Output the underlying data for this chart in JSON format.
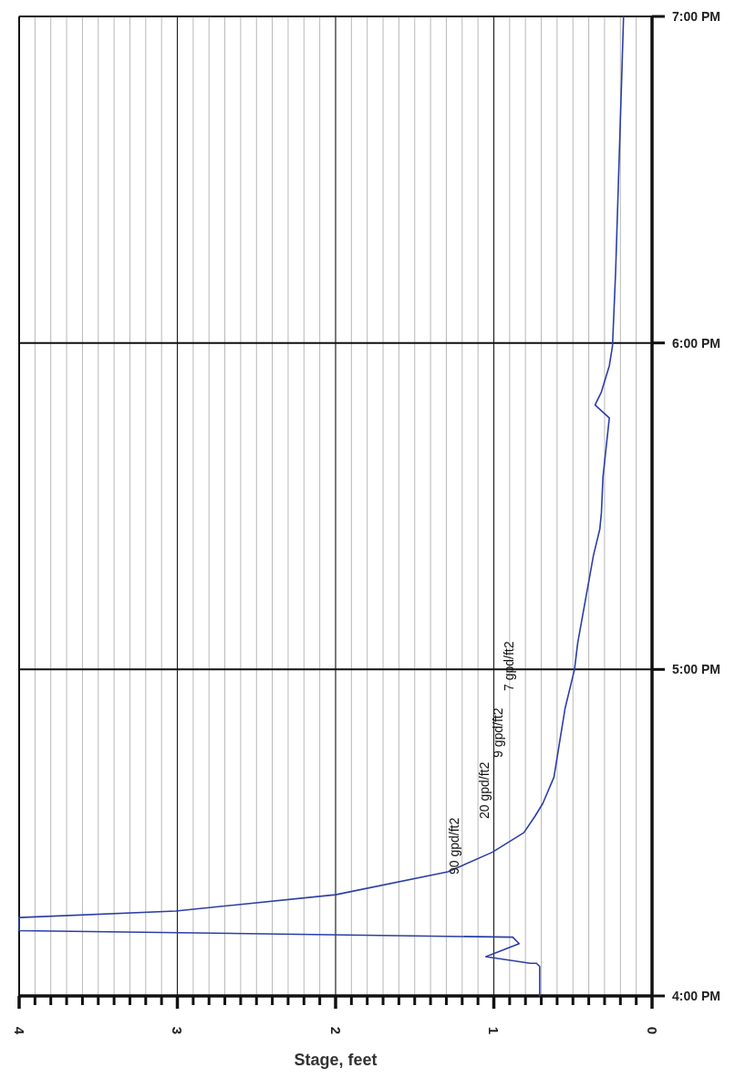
{
  "chart_data": {
    "type": "line",
    "xlabel": "Stage, feet",
    "xlim": [
      4,
      0
    ],
    "xticks": [
      0,
      {
        "value": 0.1,
        "label": null
      },
      {
        "value": 0.2,
        "label": null
      },
      {
        "value": 0.3,
        "label": null
      },
      {
        "value": 0.4,
        "label": null
      },
      {
        "value": 0.5,
        "label": null
      },
      {
        "value": 0.6,
        "label": null
      },
      {
        "value": 0.7,
        "label": null
      },
      {
        "value": 0.8,
        "label": null
      },
      {
        "value": 0.9,
        "label": null
      },
      1,
      {
        "value": 1.1,
        "label": null
      },
      {
        "value": 1.2,
        "label": null
      },
      {
        "value": 1.3,
        "label": null
      },
      {
        "value": 1.4,
        "label": null
      },
      {
        "value": 1.5,
        "label": null
      },
      {
        "value": 1.6,
        "label": null
      },
      {
        "value": 1.7,
        "label": null
      },
      {
        "value": 1.8,
        "label": null
      },
      {
        "value": 1.9,
        "label": null
      },
      2,
      {
        "value": 2.1,
        "label": null
      },
      {
        "value": 2.2,
        "label": null
      },
      {
        "value": 2.3,
        "label": null
      },
      {
        "value": 2.4,
        "label": null
      },
      {
        "value": 2.5,
        "label": null
      },
      {
        "value": 2.6,
        "label": null
      },
      {
        "value": 2.7,
        "label": null
      },
      {
        "value": 2.8,
        "label": null
      },
      {
        "value": 2.9,
        "label": null
      },
      3,
      {
        "value": 3.1,
        "label": null
      },
      {
        "value": 3.2,
        "label": null
      },
      {
        "value": 3.3,
        "label": null
      },
      {
        "value": 3.4,
        "label": null
      },
      {
        "value": 3.5,
        "label": null
      },
      {
        "value": 3.6,
        "label": null
      },
      {
        "value": 3.7,
        "label": null
      },
      {
        "value": 3.8,
        "label": null
      },
      {
        "value": 3.9,
        "label": null
      },
      4
    ],
    "ylim": [
      16,
      19
    ],
    "yticks": [
      {
        "value": 16,
        "label": "4:00 PM"
      },
      {
        "value": 17,
        "label": "5:00 PM"
      },
      {
        "value": 18,
        "label": "6:00 PM"
      },
      {
        "value": 19,
        "label": "7:00 PM"
      }
    ],
    "grid": true,
    "series": [
      {
        "color": "#2b3fa6",
        "x": [
          0.71,
          0.71,
          0.73,
          0.77,
          1.05,
          0.84,
          0.88,
          4.0,
          4.0,
          3.01,
          2.0,
          1.29,
          1.01,
          0.81,
          0.74,
          0.69,
          0.62,
          0.55,
          0.49,
          0.47,
          0.37,
          0.33,
          0.32,
          0.31,
          0.27,
          0.36,
          0.32,
          0.27,
          0.25,
          0.23,
          0.21,
          0.19,
          0.18
        ],
        "values": [
          16.0,
          16.09,
          16.1,
          16.1,
          16.12,
          16.16,
          16.18,
          16.2,
          16.24,
          16.26,
          16.31,
          16.38,
          16.44,
          16.5,
          16.55,
          16.59,
          16.67,
          16.88,
          17.0,
          17.08,
          17.35,
          17.43,
          17.48,
          17.59,
          17.77,
          17.81,
          17.85,
          17.93,
          17.99,
          18.22,
          18.53,
          18.84,
          19.0
        ]
      }
    ],
    "annotations": [
      "90 gpd/ft2",
      "20 gpd/ft2",
      "9 gpd/ft2",
      "7 gpd/ft2"
    ]
  }
}
